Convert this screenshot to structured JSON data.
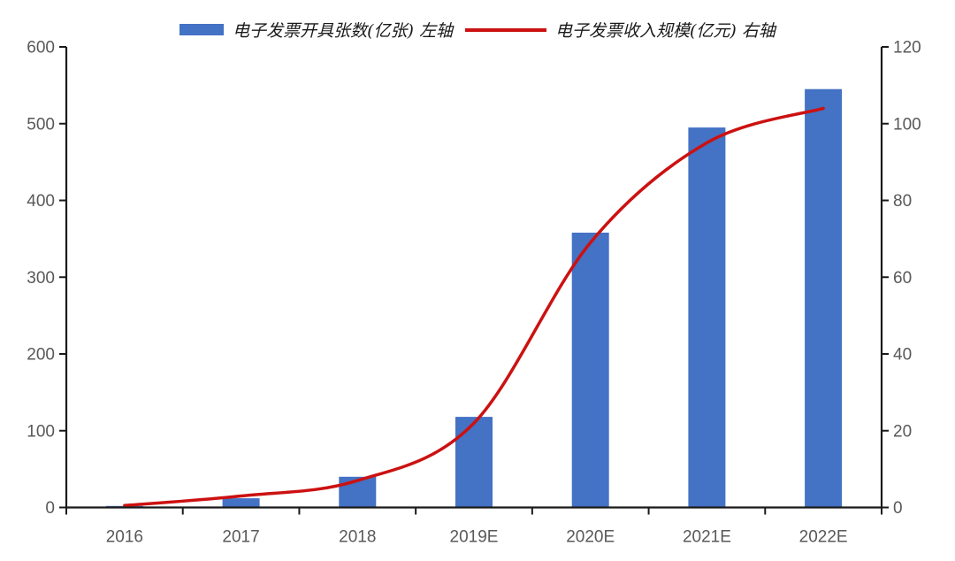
{
  "chart_data": {
    "type": "bar",
    "subtype": "combo-bar-line-dual-axis",
    "title": "",
    "categories": [
      "2016",
      "2017",
      "2018",
      "2019E",
      "2020E",
      "2021E",
      "2022E"
    ],
    "series": [
      {
        "name": "电子发票开具张数(亿张) 左轴",
        "type": "bar",
        "axis": "left",
        "color": "#4472C4",
        "values": [
          2,
          12,
          40,
          118,
          358,
          495,
          545
        ]
      },
      {
        "name": "电子发票收入规模(亿元) 右轴",
        "type": "line",
        "axis": "right",
        "color": "#CC1111",
        "values": [
          0.5,
          3,
          7,
          22,
          69,
          95,
          104
        ]
      }
    ],
    "left_axis": {
      "min": 0,
      "max": 600,
      "tick_labels": [
        "0",
        "100",
        "200",
        "300",
        "400",
        "500",
        "600"
      ]
    },
    "right_axis": {
      "min": 0,
      "max": 120,
      "tick_labels": [
        "0",
        "20",
        "40",
        "60",
        "80",
        "100",
        "120"
      ]
    },
    "grid": false,
    "legend_position": "top-center",
    "colors": {
      "axis_line": "#1a1a1a",
      "tick_label": "#595959",
      "background": "#ffffff"
    }
  }
}
